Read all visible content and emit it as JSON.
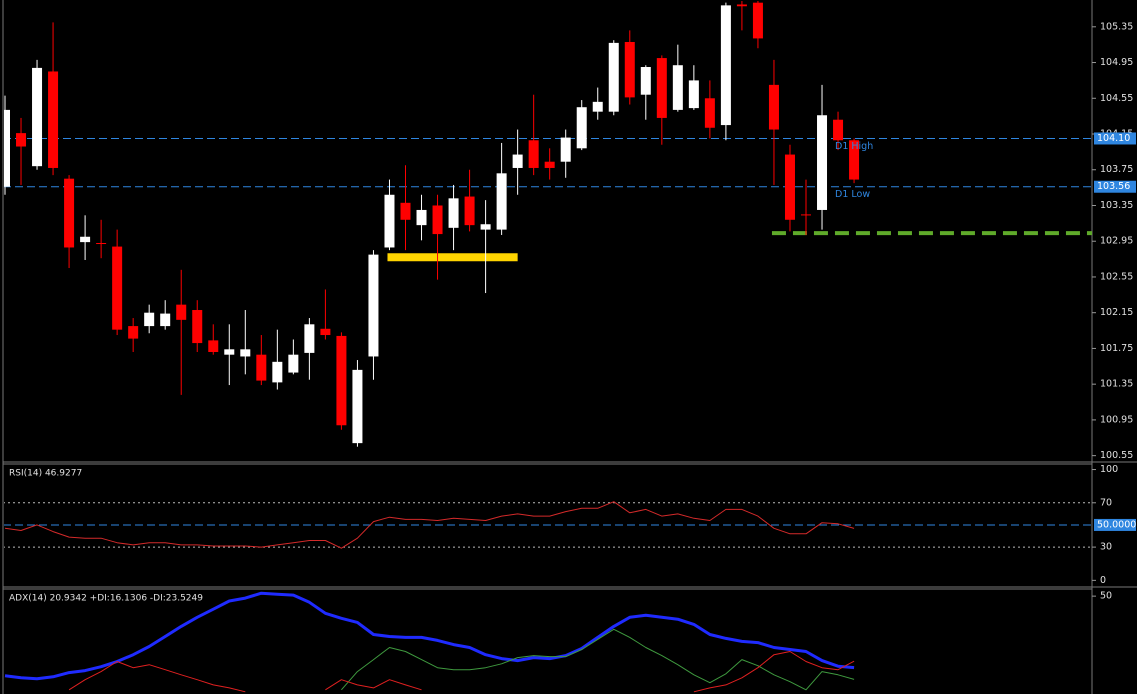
{
  "chart_data": [
    {
      "type": "candlestick",
      "open": [
        103.56,
        104.16,
        103.79,
        104.85,
        103.65,
        102.94,
        102.93,
        102.89,
        102.0,
        102.0,
        102.0,
        102.24,
        102.18,
        101.84,
        101.68,
        101.66,
        101.68,
        101.37,
        101.48,
        101.7,
        101.97,
        101.89,
        100.69,
        101.66,
        102.88,
        103.38,
        103.13,
        103.35,
        103.1,
        103.45,
        103.08,
        103.08,
        103.77,
        104.08,
        103.84,
        103.84,
        103.99,
        104.4,
        104.4,
        105.18,
        104.59,
        105.0,
        104.42,
        104.44,
        104.55,
        104.25,
        105.6,
        105.62,
        104.7,
        103.92,
        103.25,
        103.3,
        104.31,
        104.08
      ],
      "high": [
        104.58,
        104.33,
        104.98,
        105.4,
        103.69,
        103.24,
        103.19,
        103.08,
        102.09,
        102.24,
        102.29,
        102.63,
        102.29,
        102.02,
        102.02,
        102.18,
        101.9,
        101.96,
        101.85,
        102.09,
        102.41,
        101.93,
        101.62,
        102.85,
        103.64,
        103.8,
        103.47,
        103.47,
        103.58,
        103.75,
        103.41,
        104.05,
        104.2,
        104.59,
        103.99,
        104.2,
        104.53,
        104.67,
        105.2,
        105.31,
        104.92,
        105.03,
        105.15,
        104.92,
        104.75,
        105.62,
        105.65,
        105.65,
        104.98,
        104.03,
        103.64,
        104.7,
        104.4,
        104.1
      ],
      "low": [
        103.47,
        103.58,
        103.75,
        103.69,
        102.65,
        102.74,
        102.76,
        101.9,
        101.71,
        101.92,
        101.96,
        101.23,
        101.71,
        101.68,
        101.34,
        101.46,
        101.34,
        101.29,
        101.46,
        101.4,
        101.85,
        100.84,
        100.65,
        101.4,
        102.85,
        102.85,
        102.96,
        102.52,
        102.85,
        103.06,
        102.37,
        103.02,
        103.47,
        103.69,
        103.64,
        103.66,
        103.97,
        104.31,
        104.36,
        104.48,
        104.31,
        104.03,
        104.4,
        104.42,
        104.1,
        104.08,
        105.31,
        105.11,
        103.58,
        103.06,
        103.02,
        103.08,
        103.97,
        103.6
      ],
      "close": [
        104.42,
        104.01,
        104.89,
        103.77,
        102.88,
        103.0,
        102.92,
        101.96,
        101.86,
        102.15,
        102.14,
        102.07,
        101.81,
        101.71,
        101.74,
        101.74,
        101.39,
        101.6,
        101.68,
        102.02,
        101.9,
        100.89,
        101.51,
        102.8,
        103.47,
        103.19,
        103.3,
        103.03,
        103.43,
        103.13,
        103.14,
        103.71,
        103.92,
        103.77,
        103.77,
        104.11,
        104.45,
        104.51,
        105.17,
        104.56,
        104.9,
        104.33,
        104.92,
        104.75,
        104.22,
        105.59,
        105.58,
        105.22,
        104.2,
        103.19,
        103.24,
        104.36,
        104.08,
        103.64
      ],
      "up_color": "#ffffff",
      "down_color": "#ff0000",
      "ylim": [
        100.49,
        105.65
      ],
      "yticks": [
        105.35,
        104.95,
        104.55,
        104.15,
        103.75,
        103.35,
        102.95,
        102.55,
        102.15,
        101.75,
        101.35,
        100.95,
        100.55
      ],
      "levels": [
        {
          "name": "D1 High",
          "value": 104.1,
          "label": "104.10",
          "color": "#2f86e0",
          "style": "dashed"
        },
        {
          "name": "D1 Low",
          "value": 103.56,
          "label": "103.56",
          "color": "#2f86e0",
          "style": "dashed"
        }
      ],
      "bands": [
        {
          "value": 102.77,
          "start": 24,
          "end": 32,
          "color": "#ffd400",
          "style": "solid"
        },
        {
          "value": 103.04,
          "start": 48,
          "color": "#5faa2a",
          "style": "dashed"
        }
      ]
    },
    {
      "type": "line",
      "title": "RSI(14) 46.9277",
      "series": [
        {
          "color": "#d42a2a",
          "values": [
            47,
            45,
            50,
            44,
            39,
            38,
            38,
            34,
            32,
            34,
            34,
            32,
            32,
            31,
            31,
            31,
            30,
            32,
            34,
            36,
            36,
            29,
            38,
            53,
            57,
            55,
            55,
            54,
            56,
            55,
            54,
            58,
            60,
            58,
            58,
            62,
            65,
            65,
            71,
            61,
            64,
            58,
            60,
            56,
            54,
            64,
            64,
            58,
            47,
            42,
            42,
            52,
            51,
            46.9277
          ]
        }
      ],
      "ylim": [
        -6,
        105
      ],
      "yticks": [
        0,
        30,
        70,
        100
      ],
      "levels": [
        {
          "value": 70,
          "color": "#bbbbbb",
          "style": "dotted"
        },
        {
          "value": 30,
          "color": "#bbbbbb",
          "style": "dotted"
        },
        {
          "value": 50,
          "label": "50.0000",
          "color": "#2f86e0",
          "style": "dashed"
        }
      ]
    },
    {
      "type": "line",
      "title": "ADX(14) 20.9342 +DI:16.1306 -DI:23.5249",
      "series": [
        {
          "color": "#1f2bff",
          "width": 3,
          "values": [
            17.6,
            16.8,
            16.4,
            17.2,
            18.9,
            19.7,
            21.3,
            23.4,
            26.2,
            29.5,
            33.6,
            37.7,
            41.4,
            44.7,
            48.0,
            49.2,
            51.2,
            50.8,
            50.4,
            47.5,
            43.0,
            41.0,
            39.3,
            34.4,
            33.6,
            33.2,
            33.2,
            32.0,
            30.3,
            29.1,
            26.2,
            24.6,
            23.8,
            25.0,
            24.6,
            25.8,
            28.7,
            33.2,
            37.7,
            41.4,
            42.2,
            41.4,
            40.6,
            38.5,
            34.4,
            32.8,
            31.6,
            31.1,
            29.1,
            28.3,
            27.5,
            23.8,
            21.5,
            20.93
          ]
        },
        {
          "color": "#3f9a3f",
          "width": 1,
          "values": [
            null,
            null,
            null,
            null,
            null,
            null,
            null,
            null,
            null,
            null,
            null,
            null,
            null,
            null,
            null,
            null,
            null,
            null,
            null,
            null,
            null,
            11.9,
            19.3,
            24.2,
            29.1,
            27.5,
            24.2,
            20.9,
            20.1,
            20.1,
            20.9,
            22.5,
            25.0,
            25.8,
            25.4,
            25.4,
            28.3,
            32.4,
            36.5,
            33.2,
            29.1,
            25.8,
            22.1,
            18.0,
            14.8,
            18.4,
            24.2,
            21.7,
            18.0,
            15.2,
            11.9,
            19.3,
            18.0,
            16.13
          ]
        },
        {
          "color": "#e02020",
          "width": 1,
          "values": [
            null,
            null,
            null,
            null,
            11.9,
            16.0,
            19.3,
            23.4,
            20.9,
            22.1,
            20.1,
            18.0,
            16.0,
            13.9,
            12.7,
            11.1,
            null,
            null,
            null,
            null,
            11.9,
            16.0,
            13.9,
            12.7,
            16.0,
            13.9,
            11.9,
            null,
            null,
            null,
            null,
            null,
            null,
            null,
            null,
            null,
            null,
            null,
            null,
            null,
            null,
            null,
            null,
            11.1,
            12.7,
            13.9,
            16.8,
            20.9,
            26.2,
            27.5,
            23.4,
            20.9,
            20.1,
            23.52
          ]
        }
      ],
      "ylim": [
        10.2,
        52.9
      ],
      "yticks": [
        50
      ]
    }
  ]
}
